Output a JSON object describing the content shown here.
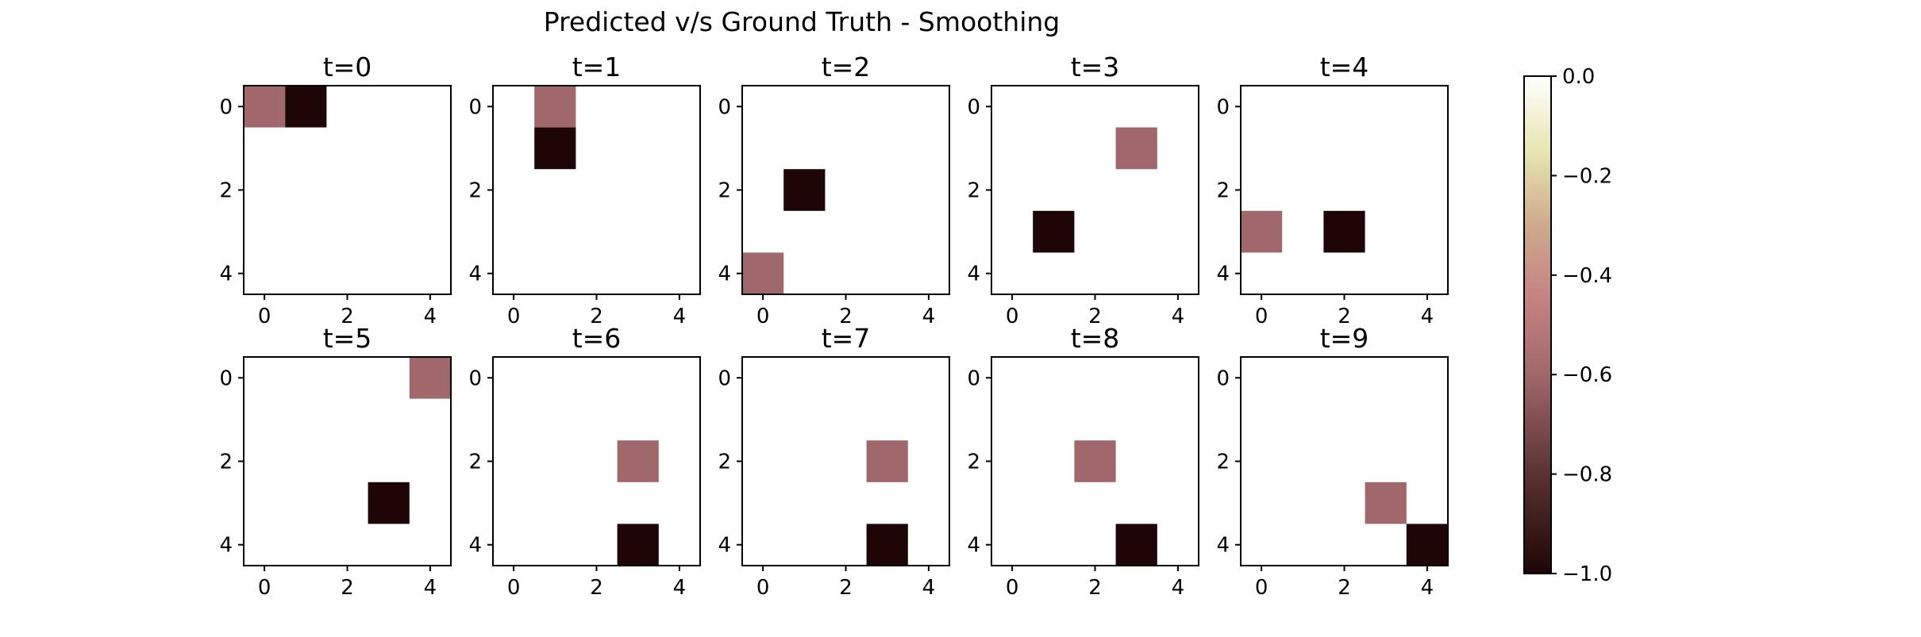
{
  "chart_data": {
    "type": "heatmap",
    "title": "Predicted v/s Ground Truth - Smoothing",
    "grid": false,
    "grid_size": [
      5,
      5
    ],
    "xlim": [
      -0.5,
      4.5
    ],
    "ylim": [
      4.5,
      -0.5
    ],
    "tick_labels": [
      "0",
      "2",
      "4"
    ],
    "colorbar": {
      "range": [
        -1.0,
        0.0
      ],
      "ticks": [
        "0.0",
        "−0.2",
        "−0.4",
        "−0.6",
        "−0.8",
        "−1.0"
      ],
      "tick_values": [
        0.0,
        -0.2,
        -0.4,
        -0.6,
        -0.8,
        -1.0
      ],
      "position": "right"
    },
    "colors": {
      "predicted_cell": "#a0686a",
      "ground_truth_cell": "#1e0606",
      "background": "#ffffff"
    },
    "panels": [
      {
        "title": "t=0",
        "cells": [
          {
            "row": 0,
            "col": 0,
            "value": -0.6
          },
          {
            "row": 0,
            "col": 1,
            "value": -1.0
          }
        ]
      },
      {
        "title": "t=1",
        "cells": [
          {
            "row": 0,
            "col": 1,
            "value": -0.6
          },
          {
            "row": 1,
            "col": 1,
            "value": -1.0
          }
        ]
      },
      {
        "title": "t=2",
        "cells": [
          {
            "row": 4,
            "col": 0,
            "value": -0.6
          },
          {
            "row": 2,
            "col": 1,
            "value": -1.0
          }
        ]
      },
      {
        "title": "t=3",
        "cells": [
          {
            "row": 1,
            "col": 3,
            "value": -0.6
          },
          {
            "row": 3,
            "col": 1,
            "value": -1.0
          }
        ]
      },
      {
        "title": "t=4",
        "cells": [
          {
            "row": 3,
            "col": 0,
            "value": -0.6
          },
          {
            "row": 3,
            "col": 2,
            "value": -1.0
          }
        ]
      },
      {
        "title": "t=5",
        "cells": [
          {
            "row": 0,
            "col": 4,
            "value": -0.6
          },
          {
            "row": 3,
            "col": 3,
            "value": -1.0
          }
        ]
      },
      {
        "title": "t=6",
        "cells": [
          {
            "row": 2,
            "col": 3,
            "value": -0.6
          },
          {
            "row": 4,
            "col": 3,
            "value": -1.0
          }
        ]
      },
      {
        "title": "t=7",
        "cells": [
          {
            "row": 2,
            "col": 3,
            "value": -0.6
          },
          {
            "row": 4,
            "col": 3,
            "value": -1.0
          }
        ]
      },
      {
        "title": "t=8",
        "cells": [
          {
            "row": 2,
            "col": 2,
            "value": -0.6
          },
          {
            "row": 4,
            "col": 3,
            "value": -1.0
          }
        ]
      },
      {
        "title": "t=9",
        "cells": [
          {
            "row": 3,
            "col": 3,
            "value": -0.6
          },
          {
            "row": 4,
            "col": 4,
            "value": -1.0
          }
        ]
      }
    ]
  }
}
